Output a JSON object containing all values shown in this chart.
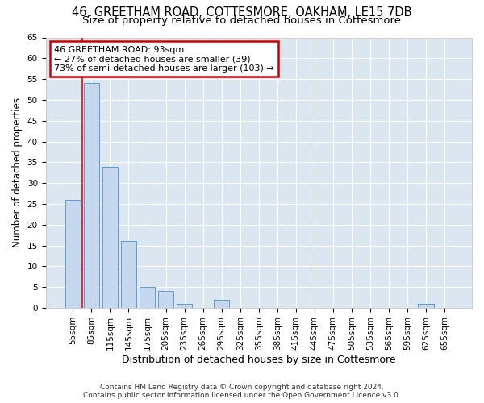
{
  "title1": "46, GREETHAM ROAD, COTTESMORE, OAKHAM, LE15 7DB",
  "title2": "Size of property relative to detached houses in Cottesmore",
  "xlabel": "Distribution of detached houses by size in Cottesmore",
  "ylabel": "Number of detached properties",
  "categories": [
    "55sqm",
    "85sqm",
    "115sqm",
    "145sqm",
    "175sqm",
    "205sqm",
    "235sqm",
    "265sqm",
    "295sqm",
    "325sqm",
    "355sqm",
    "385sqm",
    "415sqm",
    "445sqm",
    "475sqm",
    "505sqm",
    "535sqm",
    "565sqm",
    "595sqm",
    "625sqm",
    "655sqm"
  ],
  "values": [
    26,
    54,
    34,
    16,
    5,
    4,
    1,
    0,
    2,
    0,
    0,
    0,
    0,
    0,
    0,
    0,
    0,
    0,
    0,
    1,
    0
  ],
  "bar_color": "#c5d8ed",
  "bar_edge_color": "#5b9bd5",
  "property_line_x": 1.0,
  "annotation_line1": "46 GREETHAM ROAD: 93sqm",
  "annotation_line2": "← 27% of detached houses are smaller (39)",
  "annotation_line3": "73% of semi-detached houses are larger (103) →",
  "annotation_box_color": "#ffffff",
  "annotation_box_edge_color": "#cc0000",
  "ylim": [
    0,
    65
  ],
  "yticks": [
    0,
    5,
    10,
    15,
    20,
    25,
    30,
    35,
    40,
    45,
    50,
    55,
    60,
    65
  ],
  "background_color": "#dce6f1",
  "grid_color": "#ffffff",
  "footer1": "Contains HM Land Registry data © Crown copyright and database right 2024.",
  "footer2": "Contains public sector information licensed under the Open Government Licence v3.0.",
  "title1_fontsize": 10.5,
  "title2_fontsize": 9.5,
  "xlabel_fontsize": 9,
  "ylabel_fontsize": 8.5,
  "tick_fontsize": 7.5,
  "annotation_fontsize": 8,
  "footer_fontsize": 6.5
}
